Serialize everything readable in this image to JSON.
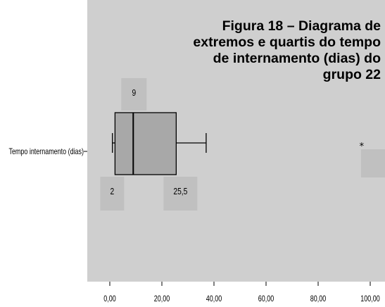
{
  "title_lines": [
    "Figura 18 – Diagrama de",
    "extremos e quartis do tempo",
    "de internamento (dias) do",
    "grupo 22"
  ],
  "chart_data": {
    "type": "boxplot",
    "orientation": "horizontal",
    "category_label": "Tempo internamento (dias)",
    "xlim": [
      0,
      100
    ],
    "x_ticks": [
      0,
      20,
      40,
      60,
      80,
      100
    ],
    "x_tick_labels": [
      "0,00",
      "20,00",
      "40,00",
      "60,00",
      "80,00",
      "100,00"
    ],
    "box": {
      "whisker_low": 1,
      "q1": 2,
      "median": 9,
      "q3": 25.5,
      "whisker_high": 37
    },
    "outliers": [
      {
        "value": 97,
        "symbol": "*"
      }
    ],
    "annotations": [
      {
        "text": "9",
        "refers_to": "median"
      },
      {
        "text": "2",
        "refers_to": "q1"
      },
      {
        "text": "25,5",
        "refers_to": "q3"
      }
    ],
    "colors": {
      "background": "#cfcfcf",
      "box_fill": "#a8a8a8",
      "label_patch": "#c0c0c0",
      "line": "#000000"
    }
  }
}
